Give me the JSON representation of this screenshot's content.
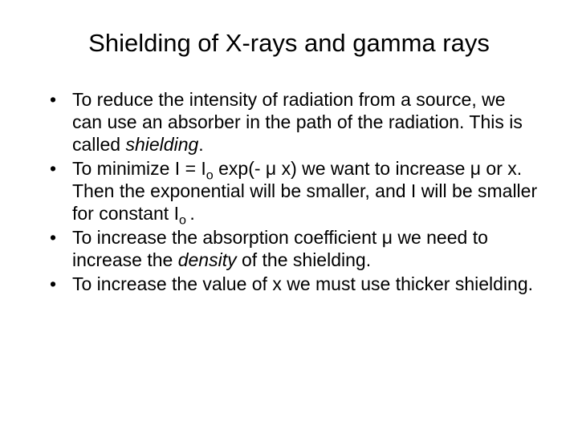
{
  "title": "Shielding of X-rays and gamma rays",
  "bullets": {
    "b1_a": "To reduce the intensity of radiation from a source, we can use an absorber in the path of the radiation.  This is called ",
    "b1_b": "shielding",
    "b1_c": ".",
    "b2_a": "To minimize I  =  I",
    "b2_b": "o",
    "b2_c": " exp(- μ x)   we want to increase μ or x.  Then the exponential will be smaller, and I will be smaller for constant I",
    "b2_d": "o ",
    "b2_e": ".",
    "b3_a": "To increase the absorption coefficient μ we need to increase the ",
    "b3_b": "density",
    "b3_c": " of the shielding.",
    "b4": "To increase the value of x we must use thicker shielding."
  },
  "colors": {
    "text": "#000000",
    "background": "#ffffff"
  },
  "typography": {
    "title_fontsize": 31,
    "body_fontsize": 23,
    "font_family": "Arial"
  }
}
